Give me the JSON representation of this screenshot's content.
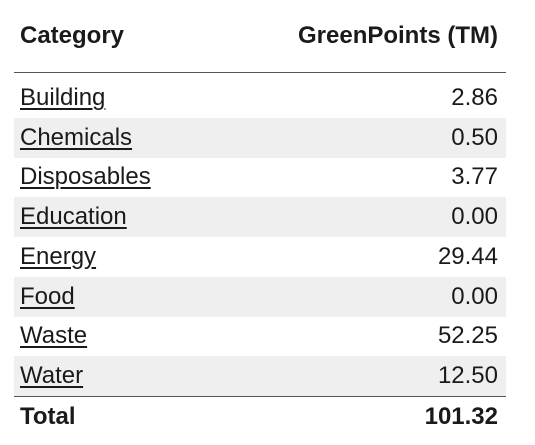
{
  "table": {
    "headers": {
      "category": "Category",
      "points": "GreenPoints (TM)"
    },
    "rows": [
      {
        "category": "Building",
        "points": "2.86"
      },
      {
        "category": "Chemicals",
        "points": "0.50"
      },
      {
        "category": "Disposables",
        "points": "3.77"
      },
      {
        "category": "Education",
        "points": "0.00"
      },
      {
        "category": "Energy",
        "points": "29.44"
      },
      {
        "category": "Food",
        "points": "0.00"
      },
      {
        "category": "Waste",
        "points": "52.25"
      },
      {
        "category": "Water",
        "points": "12.50"
      }
    ],
    "total": {
      "label": "Total",
      "points": "101.32"
    }
  }
}
